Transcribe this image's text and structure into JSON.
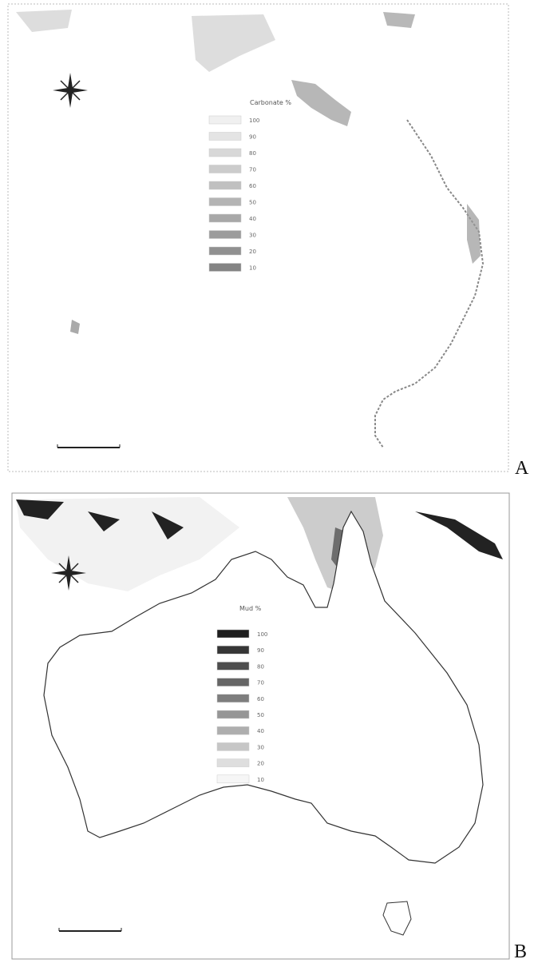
{
  "panels": [
    {
      "label": "A",
      "legend": {
        "title": "Carbonate %",
        "items": [
          "100",
          "90",
          "80",
          "70",
          "60",
          "50",
          "40",
          "30",
          "20",
          "10"
        ]
      }
    },
    {
      "label": "B",
      "legend": {
        "title": "Mud %",
        "items": [
          "100",
          "90",
          "80",
          "70",
          "60",
          "50",
          "40",
          "30",
          "20",
          "10"
        ]
      }
    }
  ]
}
